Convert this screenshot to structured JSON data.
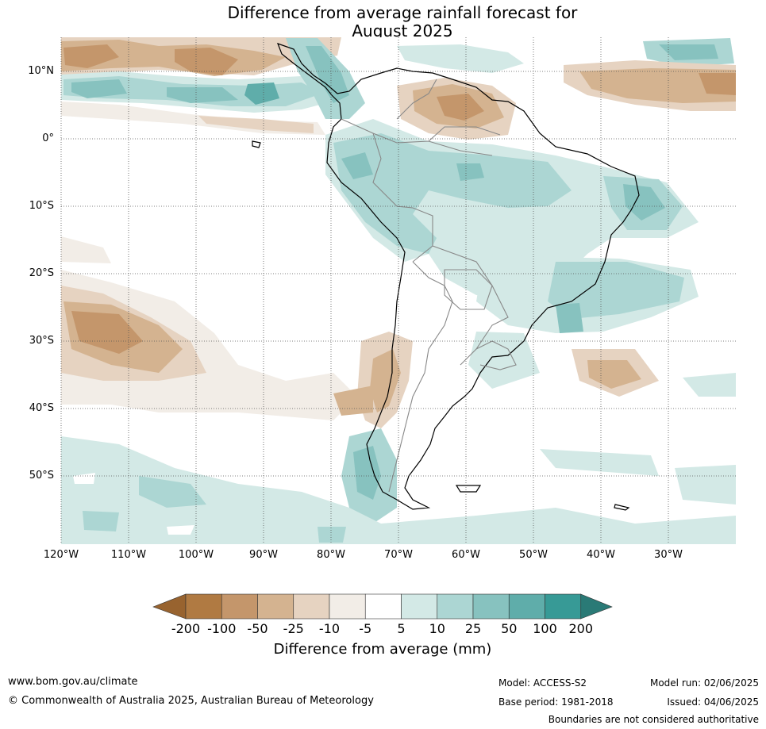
{
  "title": {
    "line1": "Difference from average rainfall forecast for",
    "line2": "August 2025"
  },
  "map": {
    "latitude_labels": [
      "10°N",
      "0°",
      "10°S",
      "20°S",
      "30°S",
      "40°S",
      "50°S"
    ],
    "longitude_labels": [
      "120°W",
      "110°W",
      "100°W",
      "90°W",
      "80°W",
      "70°W",
      "60°W",
      "50°W",
      "40°W",
      "30°W"
    ]
  },
  "colorbar": {
    "title": "Difference from average (mm)",
    "tick_labels": [
      "-200",
      "-100",
      "-50",
      "-25",
      "-10",
      "-5",
      "5",
      "10",
      "25",
      "50",
      "100",
      "200"
    ],
    "colors": [
      "#98632f",
      "#b07a42",
      "#c4966b",
      "#d4b390",
      "#e6d3c1",
      "#f2ede7",
      "#ffffff",
      "#d3e9e6",
      "#acd6d3",
      "#87c2bf",
      "#5fadaa",
      "#379a96",
      "#2a7a76"
    ]
  },
  "footer": {
    "url": "www.bom.gov.au/climate",
    "copyright": "© Commonwealth of Australia 2025, Australian Bureau of Meteorology",
    "model": "Model: ACCESS-S2",
    "base_period": "Base period: 1981-2018",
    "model_run": "Model run: 02/06/2025",
    "issued": "Issued: 04/06/2025",
    "disclaimer": "Boundaries are not considered authoritative"
  }
}
